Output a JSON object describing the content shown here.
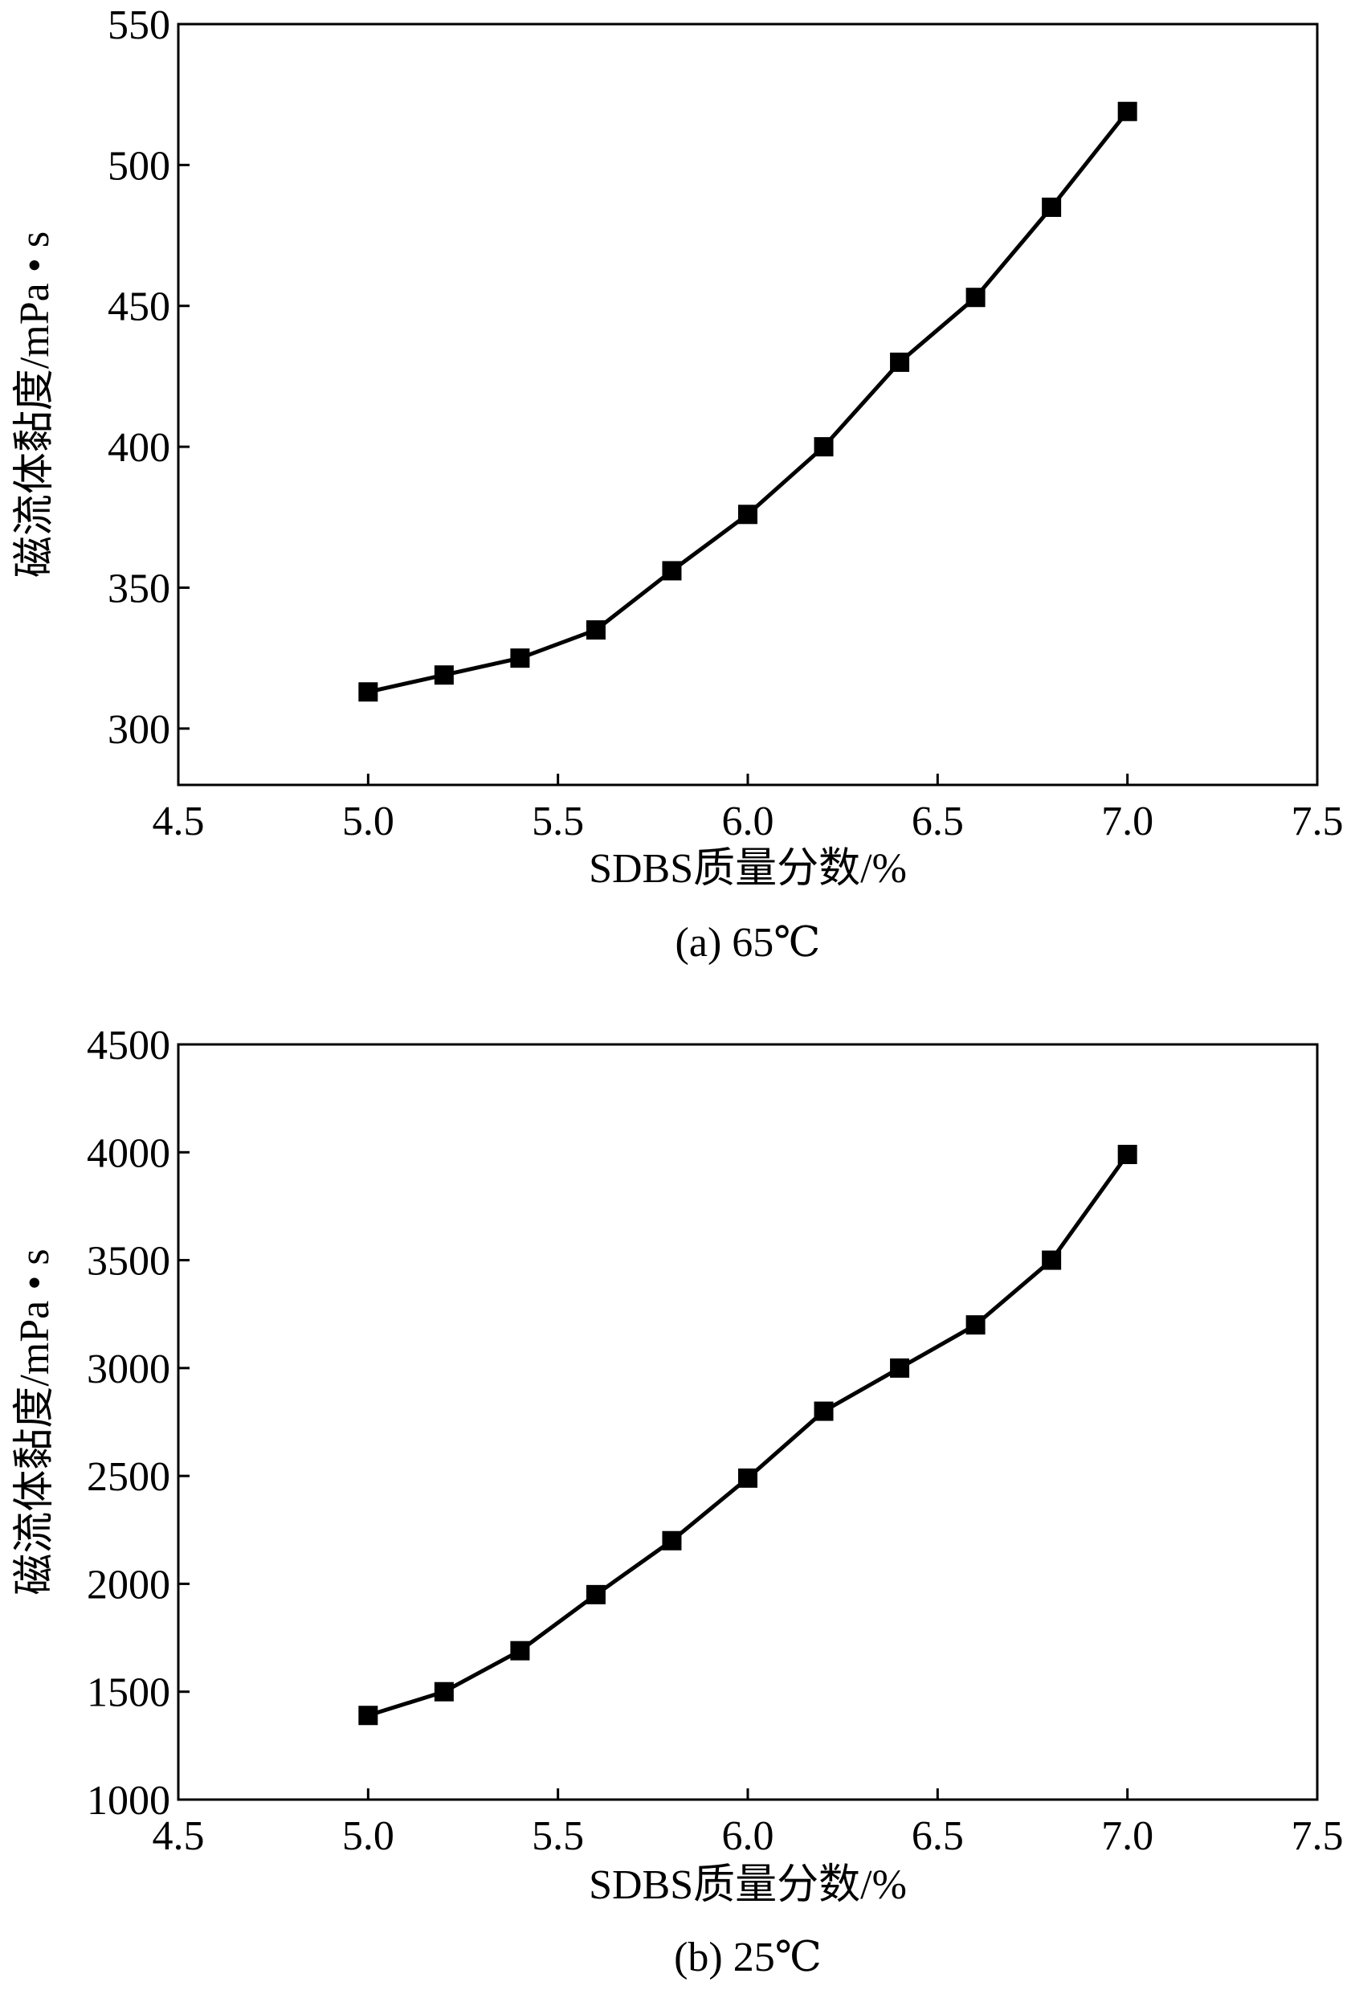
{
  "chart_data": [
    {
      "type": "line",
      "xlabel": "SDBS质量分数/%",
      "ylabel": "磁流体黏度/mPa • s",
      "caption": "(a) 65℃",
      "xlim": [
        4.5,
        7.5
      ],
      "ylim": [
        280,
        550
      ],
      "xticks": [
        "4.5",
        "5.0",
        "5.5",
        "6.0",
        "6.5",
        "7.0",
        "7.5"
      ],
      "yticks": [
        "300",
        "350",
        "400",
        "450",
        "500",
        "550"
      ],
      "x": [
        5.0,
        5.2,
        5.4,
        5.6,
        5.8,
        6.0,
        6.2,
        6.4,
        6.6,
        6.8,
        7.0
      ],
      "series": [
        {
          "values": [
            313,
            319,
            325,
            335,
            356,
            376,
            400,
            430,
            453,
            485,
            519
          ]
        }
      ],
      "marker": "square",
      "grid": false
    },
    {
      "type": "line",
      "xlabel": "SDBS质量分数/%",
      "ylabel": "磁流体黏度/mPa • s",
      "caption": "(b) 25℃",
      "xlim": [
        4.5,
        7.5
      ],
      "ylim": [
        1000,
        4500
      ],
      "xticks": [
        "4.5",
        "5.0",
        "5.5",
        "6.0",
        "6.5",
        "7.0",
        "7.5"
      ],
      "yticks": [
        "1000",
        "1500",
        "2000",
        "2500",
        "3000",
        "3500",
        "4000",
        "4500"
      ],
      "x": [
        5.0,
        5.2,
        5.4,
        5.6,
        5.8,
        6.0,
        6.2,
        6.4,
        6.6,
        6.8,
        7.0
      ],
      "series": [
        {
          "values": [
            1390,
            1500,
            1690,
            1950,
            2200,
            2490,
            2800,
            3000,
            3200,
            3500,
            3990
          ]
        }
      ],
      "marker": "square",
      "grid": false
    }
  ]
}
